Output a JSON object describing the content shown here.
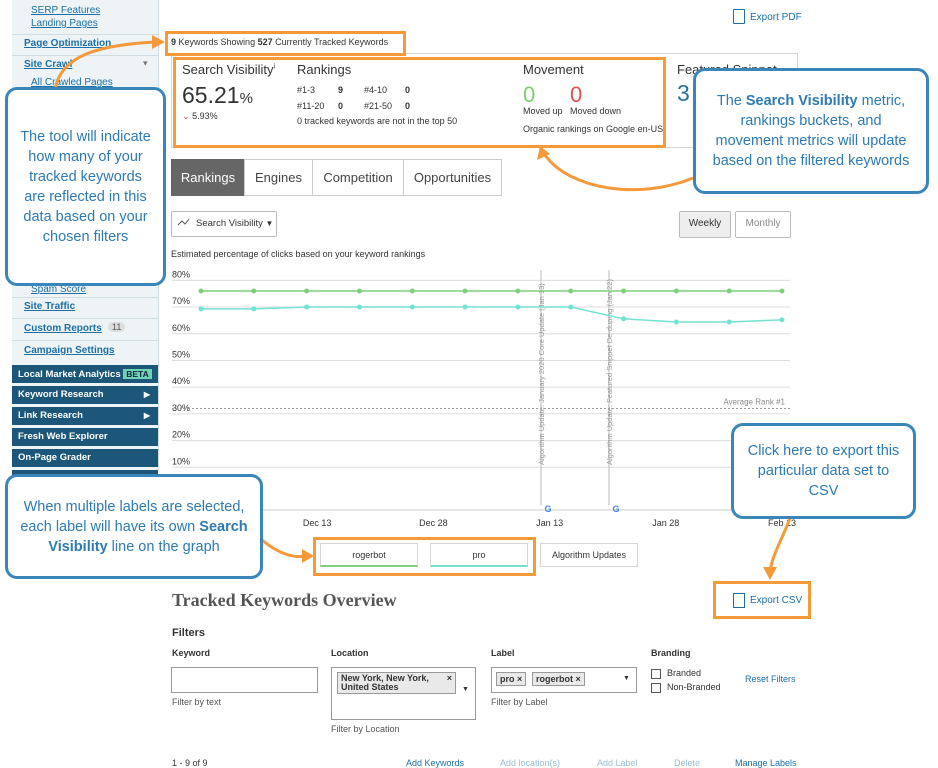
{
  "sidebar": {
    "items": [
      "SERP Features",
      "Landing Pages",
      "Page Optimization",
      "Site Crawl",
      "All Crawled Pages",
      "Spam Score",
      "Site Traffic",
      "Custom Reports",
      "Campaign Settings"
    ],
    "custom_reports_badge": "11",
    "tools": [
      "Local Market Analytics",
      "Keyword Research",
      "Link Research",
      "Fresh Web Explorer",
      "On-Page Grader"
    ],
    "beta": "BETA"
  },
  "export_pdf": "Export PDF",
  "keyword_count": {
    "count": "9",
    "text": "Keywords Showing",
    "tracked": "527",
    "tail": "Currently Tracked Keywords"
  },
  "metrics": {
    "search_visibility": {
      "title": "Search Visibility",
      "info": "i",
      "value": "65.21",
      "unit": "%",
      "change": "5.93%"
    },
    "rankings": {
      "title": "Rankings",
      "buckets": [
        [
          "#1-3",
          "9"
        ],
        [
          "#4-10",
          "0"
        ],
        [
          "#11-20",
          "0"
        ],
        [
          "#21-50",
          "0"
        ]
      ],
      "note": "0 tracked keywords are not in the top 50"
    },
    "movement": {
      "title": "Movement",
      "up": "0",
      "up_label": "Moved up",
      "down": "0",
      "down_label": "Moved down",
      "note": "Organic rankings on Google en-US"
    },
    "featured": {
      "title": "Featured Snippet",
      "value": "3"
    }
  },
  "tabs": [
    "Rankings",
    "Engines",
    "Competition",
    "Opportunities"
  ],
  "dropdown": "Search Visibility",
  "periods": [
    "Weekly",
    "Monthly"
  ],
  "chart_data": {
    "type": "line",
    "subtitle": "Estimated percentage of clicks based on your keyword rankings",
    "x_labels": [
      "Dec 13",
      "Dec 28",
      "Jan 13",
      "Jan 28",
      "Feb 13"
    ],
    "series": [
      {
        "name": "rogerbot",
        "color": "#7fd07a",
        "values": [
          76,
          76,
          76,
          76,
          76,
          76,
          76,
          76,
          76,
          76,
          76,
          76
        ]
      },
      {
        "name": "pro",
        "color": "#72e3d2",
        "values": [
          69.3,
          69.3,
          70,
          70,
          70,
          70,
          70,
          70,
          65.6,
          64.4,
          64.4,
          65.2
        ]
      }
    ],
    "ylim": [
      0,
      85
    ],
    "yticks": [
      {
        "value": 10,
        "label": "10%"
      },
      {
        "value": 20,
        "label": "20%"
      },
      {
        "value": 30,
        "label": "30%"
      },
      {
        "value": 40,
        "label": "40%"
      },
      {
        "value": 50,
        "label": "50%"
      },
      {
        "value": 60,
        "label": "60%"
      },
      {
        "value": 70,
        "label": "70%"
      },
      {
        "value": 80,
        "label": "80%"
      }
    ],
    "grid": true,
    "reference_lines": [
      {
        "value": 32,
        "label": "Average Rank #1"
      }
    ],
    "annotations": [
      "Algorithm Update: January 2020 Core Update (Jan 13)",
      "Algorithm Update: Featured Snippet De-duping (Jan 22)"
    ],
    "extra_legend": "Algorithm Updates"
  },
  "overview": {
    "title": "Tracked Keywords Overview",
    "export_csv": "Export CSV",
    "filters": "Filters",
    "keyword": {
      "label": "Keyword",
      "hint": "Filter by text"
    },
    "location": {
      "label": "Location",
      "chip": "New York, New York, United States",
      "hint": "Filter by Location"
    },
    "label": {
      "label": "Label",
      "chips": [
        "pro",
        "rogerbot"
      ],
      "hint": "Filter by Label"
    },
    "branding": {
      "label": "Branding",
      "options": [
        "Branded",
        "Non-Branded"
      ]
    },
    "reset": "Reset Filters",
    "pagination": "1 - 9 of 9",
    "actions": [
      "Add Keywords",
      "Add location(s)",
      "Add Label",
      "Delete",
      "Manage Labels"
    ]
  },
  "callouts": [
    {
      "parts": [
        "The tool will indicate how many of your tracked keywords are reflected in this data based on your chosen filters"
      ]
    },
    {
      "parts": [
        "The ",
        "Search Visibility",
        " metric, rankings buckets, and movement metrics will update based on the filtered keywords"
      ]
    },
    {
      "parts": [
        "When multiple labels are selected, each label will have its own ",
        "Search Visibility",
        " line on the graph"
      ]
    },
    {
      "parts": [
        "Click here to export this particular data set to CSV"
      ]
    }
  ]
}
